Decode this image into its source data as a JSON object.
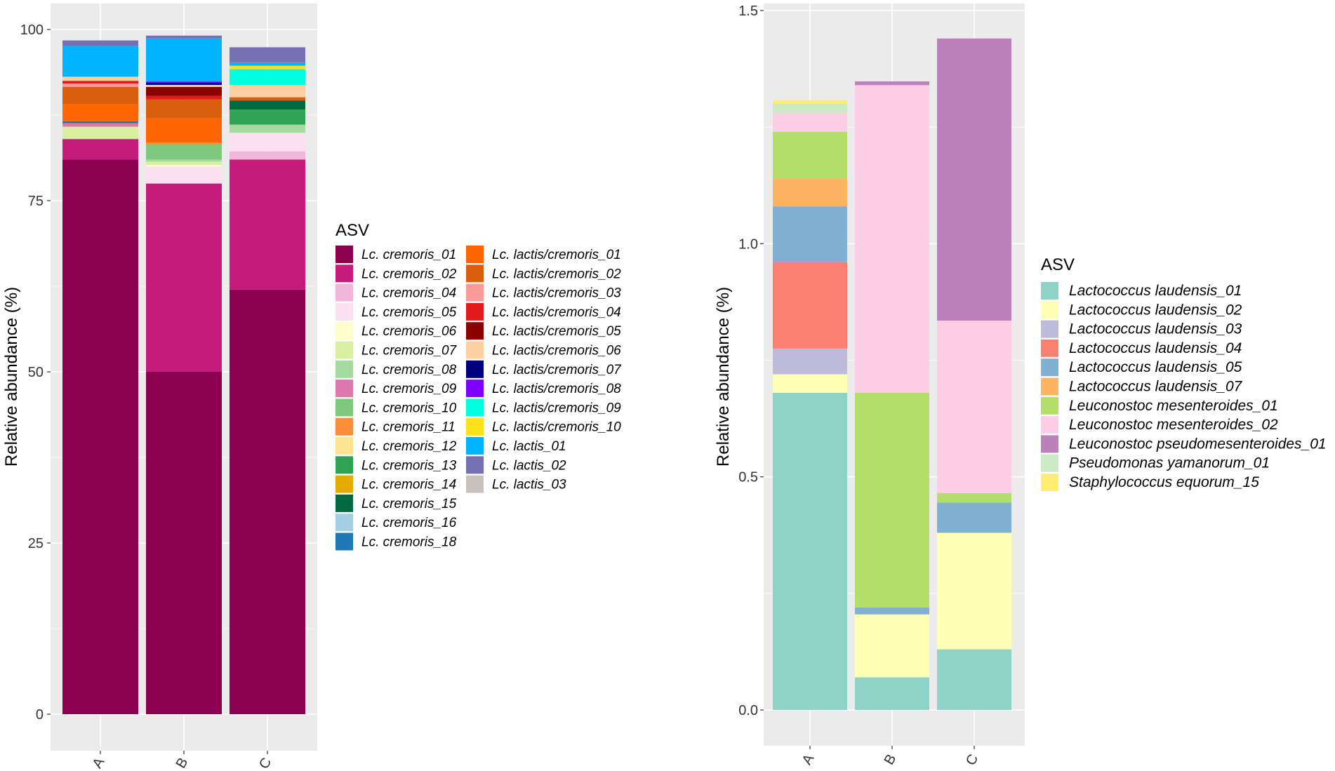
{
  "chart_data": [
    {
      "type": "bar",
      "stacked": true,
      "categories": [
        "A",
        "B",
        "C"
      ],
      "ylabel": "Relative abundance (%)",
      "xlabel": "",
      "ylim": [
        0,
        100
      ],
      "yticks": [
        0,
        25,
        50,
        75,
        100
      ],
      "legend_title": "ASV",
      "legend_position": "right",
      "series": [
        {
          "name": "Lc. cremoris_01",
          "color": "#8B004F",
          "values": [
            81,
            50,
            62
          ]
        },
        {
          "name": "Lc. cremoris_02",
          "color": "#C51B7D",
          "values": [
            3,
            27.5,
            19
          ]
        },
        {
          "name": "Lc. cremoris_04",
          "color": "#F1B6DA",
          "values": [
            0,
            0,
            1.2
          ]
        },
        {
          "name": "Lc. cremoris_05",
          "color": "#FDE0EF",
          "values": [
            0,
            2.5,
            2.7
          ]
        },
        {
          "name": "Lc. cremoris_06",
          "color": "#FFFFCC",
          "values": [
            0,
            0.2,
            0
          ]
        },
        {
          "name": "Lc. cremoris_07",
          "color": "#D9F0A3",
          "values": [
            1.8,
            0.5,
            0
          ]
        },
        {
          "name": "Lc. cremoris_08",
          "color": "#A6DBA0",
          "values": [
            0,
            0.3,
            1.2
          ]
        },
        {
          "name": "Lc. cremoris_09",
          "color": "#DE77AE",
          "values": [
            0.5,
            0,
            0
          ]
        },
        {
          "name": "Lc. cremoris_10",
          "color": "#7FC97F",
          "values": [
            0,
            2.2,
            0
          ]
        },
        {
          "name": "Lc. cremoris_11",
          "color": "#FD8D3C",
          "values": [
            0,
            0.3,
            0
          ]
        },
        {
          "name": "Lc. cremoris_12",
          "color": "#FEE391",
          "values": [
            0,
            0,
            0
          ]
        },
        {
          "name": "Lc. cremoris_13",
          "color": "#31A354",
          "values": [
            0,
            0,
            2.2
          ]
        },
        {
          "name": "Lc. cremoris_14",
          "color": "#E6AB02",
          "values": [
            0,
            0,
            0
          ]
        },
        {
          "name": "Lc. cremoris_15",
          "color": "#00693E",
          "values": [
            0,
            0,
            1.3
          ]
        },
        {
          "name": "Lc. cremoris_16",
          "color": "#A6CEE3",
          "values": [
            0,
            0,
            0
          ]
        },
        {
          "name": "Lc. cremoris_18",
          "color": "#1F78B4",
          "values": [
            0.3,
            0,
            0
          ]
        },
        {
          "name": "Lc. lactis/cremoris_01",
          "color": "#FF6600",
          "values": [
            2.5,
            3.5,
            0
          ]
        },
        {
          "name": "Lc. lactis/cremoris_02",
          "color": "#D95F0E",
          "values": [
            2.5,
            2.8,
            0.5
          ]
        },
        {
          "name": "Lc. lactis/cremoris_03",
          "color": "#FB9A99",
          "values": [
            0.5,
            0,
            0
          ]
        },
        {
          "name": "Lc. lactis/cremoris_04",
          "color": "#E31A1C",
          "values": [
            0.4,
            0.5,
            0
          ]
        },
        {
          "name": "Lc. lactis/cremoris_05",
          "color": "#8B0000",
          "values": [
            0,
            1.3,
            0
          ]
        },
        {
          "name": "Lc. lactis/cremoris_06",
          "color": "#FDD0A2",
          "values": [
            0.6,
            0.3,
            1.8
          ]
        },
        {
          "name": "Lc. lactis/cremoris_07",
          "color": "#000080",
          "values": [
            0,
            0.3,
            0
          ]
        },
        {
          "name": "Lc. lactis/cremoris_08",
          "color": "#7F00FF",
          "values": [
            0,
            0.2,
            0
          ]
        },
        {
          "name": "Lc. lactis/cremoris_09",
          "color": "#00FFE0",
          "values": [
            0,
            0,
            2.3
          ]
        },
        {
          "name": "Lc. lactis/cremoris_10",
          "color": "#FFE119",
          "values": [
            0,
            0,
            0.5
          ]
        },
        {
          "name": "Lc. lactis_01",
          "color": "#00B4FF",
          "values": [
            4.5,
            6.3,
            0.5
          ]
        },
        {
          "name": "Lc. lactis_02",
          "color": "#7570B3",
          "values": [
            0.8,
            0.4,
            2.2
          ]
        },
        {
          "name": "Lc. lactis_03",
          "color": "#C7C2BD",
          "values": [
            0,
            0,
            0
          ]
        }
      ]
    },
    {
      "type": "bar",
      "stacked": true,
      "categories": [
        "A",
        "B",
        "C"
      ],
      "ylabel": "Relative abundance (%)",
      "xlabel": "",
      "ylim": [
        0,
        1.5
      ],
      "yticks": [
        "0.0",
        "0.5",
        "1.0",
        "1.5"
      ],
      "legend_title": "ASV",
      "legend_position": "right",
      "series": [
        {
          "name": "Lactococcus laudensis_01",
          "color": "#8DD3C7",
          "values": [
            0.68,
            0.07,
            0.13
          ]
        },
        {
          "name": "Lactococcus laudensis_02",
          "color": "#FFFFB3",
          "values": [
            0.04,
            0.135,
            0.25
          ]
        },
        {
          "name": "Lactococcus laudensis_03",
          "color": "#BEBADA",
          "values": [
            0.055,
            0,
            0
          ]
        },
        {
          "name": "Lactococcus laudensis_04",
          "color": "#FB8072",
          "values": [
            0.185,
            0,
            0
          ]
        },
        {
          "name": "Lactococcus laudensis_05",
          "color": "#80B1D3",
          "values": [
            0.12,
            0.015,
            0.065
          ]
        },
        {
          "name": "Lactococcus laudensis_07",
          "color": "#FDB462",
          "values": [
            0.06,
            0,
            0
          ]
        },
        {
          "name": "Leuconostoc mesenteroides_01",
          "color": "#B3DE69",
          "values": [
            0.1,
            0.46,
            0.02
          ]
        },
        {
          "name": "Leuconostoc mesenteroides_02",
          "color": "#FCCDE5",
          "values": [
            0.04,
            0.66,
            0.37
          ]
        },
        {
          "name": "Leuconostoc pseudomesenteroides_01",
          "color": "#BC80BD",
          "values": [
            0,
            0.008,
            0.605
          ]
        },
        {
          "name": "Pseudomonas yamanorum_01",
          "color": "#CCEBC5",
          "values": [
            0.02,
            0,
            0
          ]
        },
        {
          "name": "Staphylococcus equorum_15",
          "color": "#FFED6F",
          "values": [
            0.008,
            0,
            0
          ]
        }
      ]
    }
  ]
}
